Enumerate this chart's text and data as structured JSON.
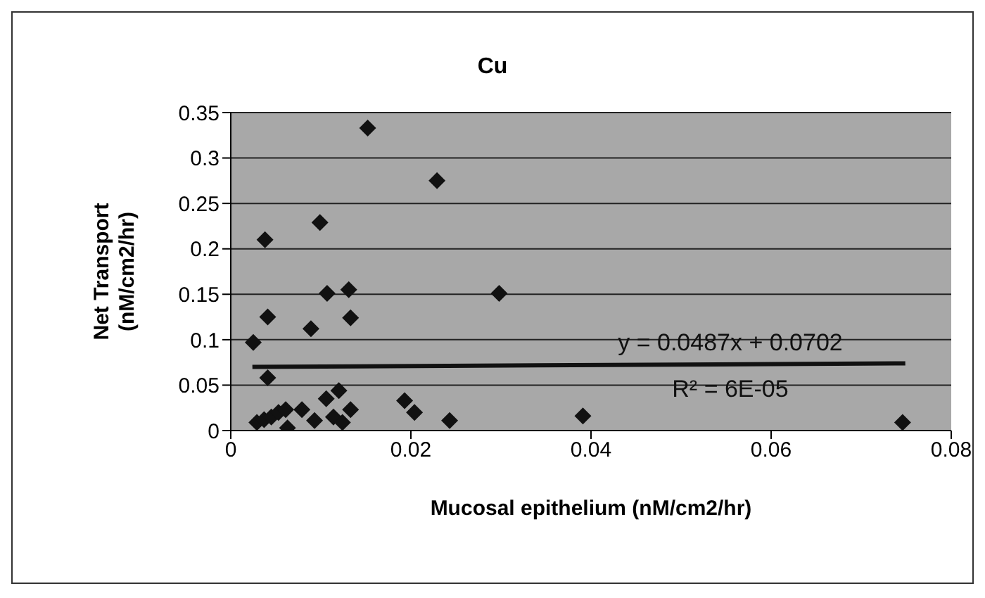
{
  "chart_data": {
    "type": "scatter",
    "title": "Cu",
    "xlabel": "Mucosal epithelium  (nM/cm2/hr)",
    "ylabel": "Net Transport (nM/cm2/hr)",
    "xlim": [
      0,
      0.08
    ],
    "xticks": [
      0,
      0.02,
      0.04,
      0.06,
      0.08
    ],
    "ylim": [
      0,
      0.35
    ],
    "yticks": [
      0,
      0.05,
      0.1,
      0.15,
      0.2,
      0.25,
      0.3,
      0.35
    ],
    "grid": "y",
    "marker": "diamond",
    "legend": false,
    "annotations": [
      "y = 0.0487x + 0.0702",
      "R² = 6E-05"
    ],
    "series": [
      {
        "color": "#111111",
        "x": [
          0.0152,
          0.0229,
          0.0099,
          0.0038,
          0.0107,
          0.0131,
          0.0298,
          0.0041,
          0.0089,
          0.0133,
          0.0025,
          0.0041,
          0.0029,
          0.0037,
          0.0045,
          0.0053,
          0.0061,
          0.0063,
          0.0079,
          0.0093,
          0.0106,
          0.012,
          0.0114,
          0.0124,
          0.0133,
          0.0193,
          0.0204,
          0.0243,
          0.0391,
          0.0746
        ],
        "values": [
          0.333,
          0.275,
          0.229,
          0.21,
          0.151,
          0.155,
          0.151,
          0.125,
          0.112,
          0.124,
          0.097,
          0.058,
          0.009,
          0.012,
          0.015,
          0.02,
          0.023,
          0.003,
          0.023,
          0.011,
          0.035,
          0.044,
          0.015,
          0.009,
          0.023,
          0.033,
          0.02,
          0.011,
          0.016,
          0.009
        ]
      },
      {
        "type": "line",
        "color": "#111111",
        "marker": "none",
        "x": [
          0.0024,
          0.0749
        ],
        "values": [
          0.07,
          0.074
        ]
      }
    ]
  }
}
